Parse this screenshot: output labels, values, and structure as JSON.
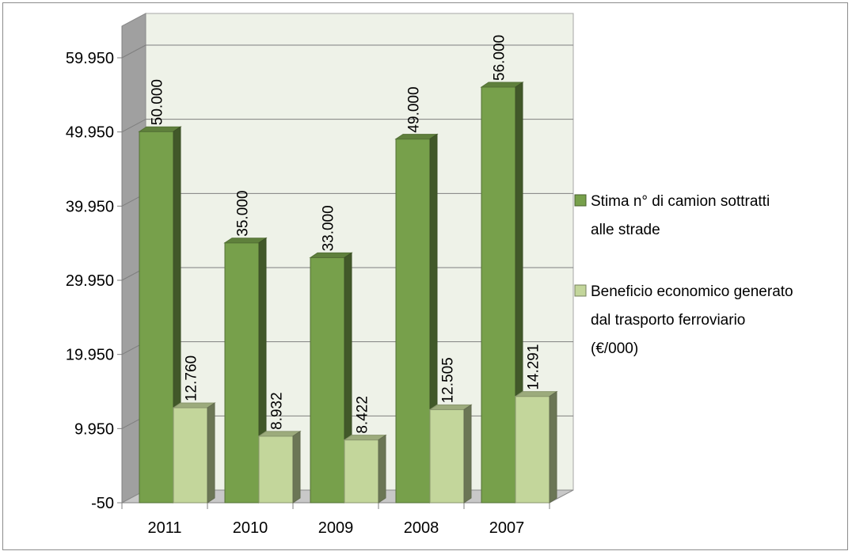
{
  "chart_data": {
    "type": "bar",
    "title": "",
    "xlabel": "",
    "ylabel": "",
    "categories": [
      "2011",
      "2010",
      "2009",
      "2008",
      "2007"
    ],
    "series": [
      {
        "name": "Stima n° di camion sottratti alle strade",
        "values": [
          50000,
          35000,
          33000,
          49000,
          56000
        ],
        "labels": [
          "50.000",
          "35.000",
          "33.000",
          "49.000",
          "56.000"
        ],
        "color": "#77a04b"
      },
      {
        "name": "Beneficio economico generato dal trasporto ferroviario (€/000)",
        "values": [
          12760,
          8932,
          8422,
          12505,
          14291
        ],
        "labels": [
          "12.760",
          "8.932",
          "8.422",
          "12.505",
          "14.291"
        ],
        "color": "#c3d69b"
      }
    ],
    "yticks": [
      -50,
      9950,
      19950,
      29950,
      39950,
      49950,
      59950
    ],
    "ytick_labels": [
      "-50",
      "9.950",
      "19.950",
      "29.950",
      "39.950",
      "49.950",
      "59.950"
    ],
    "ylim": [
      -50,
      59950
    ],
    "grid": true,
    "legend_position": "right",
    "legend": [
      [
        "Stima n° di camion sottratti",
        "alle strade"
      ],
      [
        "Beneficio economico generato",
        "dal trasporto ferroviario",
        "(€/000)"
      ]
    ]
  }
}
